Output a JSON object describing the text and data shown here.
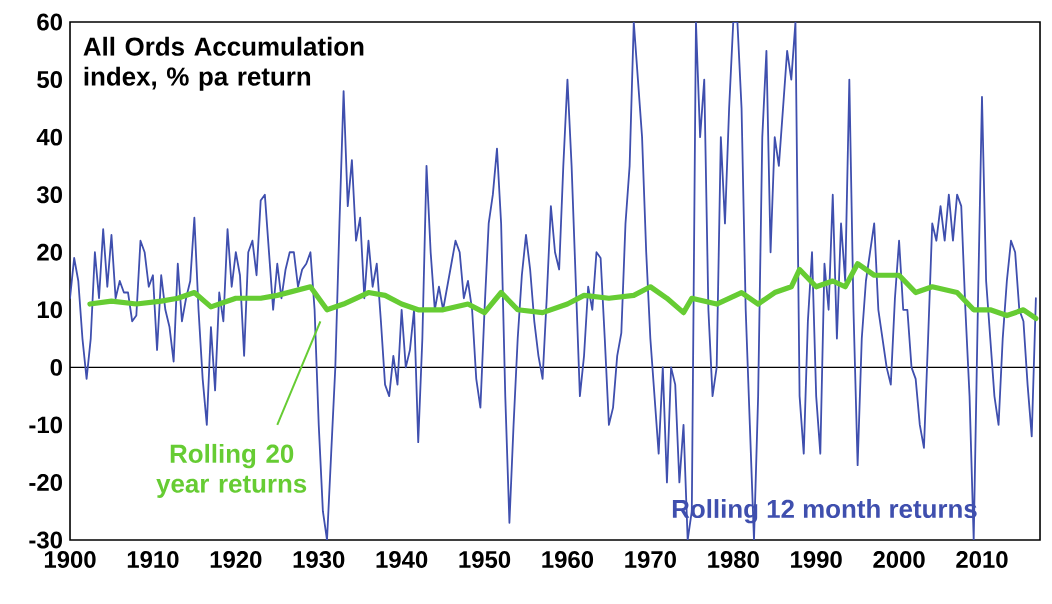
{
  "chart_data": {
    "type": "line",
    "title": "All Ords Accumulation index, % pa return",
    "xlim": [
      1900,
      2017
    ],
    "ylim": [
      -30,
      60
    ],
    "xticks": [
      1900,
      1910,
      1920,
      1930,
      1940,
      1950,
      1960,
      1970,
      1980,
      1990,
      2000,
      2010
    ],
    "yticks": [
      -30,
      -20,
      -10,
      0,
      10,
      20,
      30,
      40,
      50,
      60
    ],
    "grid": false,
    "legend": false,
    "marker": "none",
    "line_style": "solid",
    "ref_lines": [
      {
        "axis": "y",
        "value": 0,
        "color": "#000000"
      }
    ],
    "series": [
      {
        "name": "Rolling 12 month returns",
        "color": "#3f4fae",
        "x": [
          1900,
          1900.5,
          1901,
          1901.5,
          1902,
          1902.5,
          1903,
          1903.5,
          1904,
          1904.5,
          1905,
          1905.5,
          1906,
          1906.5,
          1907,
          1907.5,
          1908,
          1908.5,
          1909,
          1909.5,
          1910,
          1910.5,
          1911,
          1911.5,
          1912,
          1912.5,
          1913,
          1913.5,
          1914,
          1914.5,
          1915,
          1915.5,
          1916,
          1916.5,
          1917,
          1917.5,
          1918,
          1918.5,
          1919,
          1919.5,
          1920,
          1920.5,
          1921,
          1921.5,
          1922,
          1922.5,
          1923,
          1923.5,
          1924,
          1924.5,
          1925,
          1925.5,
          1926,
          1926.5,
          1927,
          1927.5,
          1928,
          1928.5,
          1929,
          1929.5,
          1930,
          1930.5,
          1931,
          1931.5,
          1932,
          1932.5,
          1933,
          1933.5,
          1934,
          1934.5,
          1935,
          1935.5,
          1936,
          1936.5,
          1937,
          1937.5,
          1938,
          1938.5,
          1939,
          1939.5,
          1940,
          1940.5,
          1941,
          1941.5,
          1942,
          1942.5,
          1943,
          1943.5,
          1944,
          1944.5,
          1945,
          1945.5,
          1946,
          1946.5,
          1947,
          1947.5,
          1948,
          1948.5,
          1949,
          1949.5,
          1950,
          1950.5,
          1951,
          1951.5,
          1952,
          1952.5,
          1953,
          1953.5,
          1954,
          1954.5,
          1955,
          1955.5,
          1956,
          1956.5,
          1957,
          1957.5,
          1958,
          1958.5,
          1959,
          1959.5,
          1960,
          1960.5,
          1961,
          1961.5,
          1962,
          1962.5,
          1963,
          1963.5,
          1964,
          1964.5,
          1965,
          1965.5,
          1966,
          1966.5,
          1967,
          1967.5,
          1968,
          1968.5,
          1969,
          1969.5,
          1970,
          1970.5,
          1971,
          1971.5,
          1972,
          1972.5,
          1973,
          1973.5,
          1974,
          1974.5,
          1975,
          1975.5,
          1976,
          1976.5,
          1977,
          1977.5,
          1978,
          1978.5,
          1979,
          1979.5,
          1980,
          1980.5,
          1981,
          1981.5,
          1982,
          1982.5,
          1983,
          1983.5,
          1984,
          1984.5,
          1985,
          1985.5,
          1986,
          1986.5,
          1987,
          1987.5,
          1988,
          1988.5,
          1989,
          1989.5,
          1990,
          1990.5,
          1991,
          1991.5,
          1992,
          1992.5,
          1993,
          1993.5,
          1994,
          1994.5,
          1995,
          1995.5,
          1996,
          1996.5,
          1997,
          1997.5,
          1998,
          1998.5,
          1999,
          1999.5,
          2000,
          2000.5,
          2001,
          2001.5,
          2002,
          2002.5,
          2003,
          2003.5,
          2004,
          2004.5,
          2005,
          2005.5,
          2006,
          2006.5,
          2007,
          2007.5,
          2008,
          2008.5,
          2009,
          2009.5,
          2010,
          2010.5,
          2011,
          2011.5,
          2012,
          2012.5,
          2013,
          2013.5,
          2014,
          2014.5,
          2015,
          2015.5,
          2016,
          2016.5
        ],
        "values": [
          12,
          19,
          15,
          5,
          -2,
          5,
          20,
          12,
          24,
          14,
          23,
          12,
          15,
          13,
          13,
          8,
          9,
          22,
          20,
          14,
          16,
          3,
          16,
          10,
          7,
          1,
          18,
          8,
          12,
          15,
          26,
          10,
          -2,
          -10,
          7,
          -4,
          13,
          8,
          24,
          14,
          20,
          16,
          2,
          20,
          22,
          16,
          29,
          30,
          20,
          10,
          18,
          12,
          17,
          20,
          20,
          14,
          17,
          18,
          20,
          10,
          -10,
          -25,
          -30,
          -15,
          0,
          25,
          48,
          28,
          36,
          22,
          26,
          12,
          22,
          14,
          18,
          8,
          -3,
          -5,
          2,
          -3,
          10,
          0,
          3,
          10,
          -13,
          5,
          35,
          20,
          10,
          14,
          10,
          14,
          18,
          22,
          20,
          12,
          15,
          10,
          -2,
          -7,
          10,
          25,
          30,
          38,
          25,
          -5,
          -27,
          -10,
          5,
          16,
          23,
          17,
          8,
          2,
          -2,
          12,
          28,
          20,
          17,
          35,
          50,
          35,
          15,
          -5,
          2,
          14,
          10,
          20,
          19,
          5,
          -10,
          -7,
          2,
          6,
          25,
          35,
          60,
          50,
          40,
          20,
          5,
          -5,
          -15,
          0,
          -20,
          0,
          -3,
          -20,
          -10,
          -30,
          -25,
          60,
          40,
          50,
          10,
          -5,
          0,
          40,
          25,
          45,
          60,
          60,
          45,
          10,
          -10,
          -30,
          -5,
          40,
          55,
          20,
          40,
          35,
          45,
          55,
          50,
          60,
          -5,
          -15,
          8,
          20,
          -5,
          -15,
          18,
          10,
          30,
          5,
          25,
          15,
          50,
          10,
          -17,
          5,
          15,
          20,
          25,
          10,
          5,
          0,
          -3,
          12,
          22,
          10,
          10,
          0,
          -2,
          -10,
          -14,
          5,
          25,
          22,
          28,
          22,
          30,
          22,
          30,
          28,
          10,
          -5,
          -30,
          10,
          47,
          15,
          5,
          -5,
          -10,
          5,
          15,
          22,
          20,
          10,
          8,
          -3,
          -12,
          12
        ]
      },
      {
        "name": "Rolling 20 year returns",
        "color": "#66cc33",
        "x": [
          1902.4,
          1905,
          1908,
          1911,
          1913,
          1915,
          1917,
          1920,
          1923,
          1925,
          1929,
          1931,
          1933,
          1936,
          1938,
          1940,
          1942,
          1945,
          1948,
          1950,
          1952,
          1954,
          1957,
          1960,
          1962,
          1965,
          1968,
          1970,
          1972,
          1974,
          1975,
          1978,
          1981,
          1983,
          1985,
          1987,
          1988,
          1990,
          1992,
          1993.5,
          1995,
          1997,
          2000,
          2002,
          2004,
          2007,
          2009,
          2011,
          2013,
          2015,
          2016.5
        ],
        "values": [
          11,
          11.5,
          11,
          11.5,
          12,
          13,
          10.5,
          12,
          12,
          12.5,
          14,
          10,
          11,
          13,
          12.5,
          11,
          10,
          10,
          11,
          9.5,
          13,
          10,
          9.5,
          11,
          12.5,
          12,
          12.5,
          14,
          12,
          9.5,
          12,
          11,
          13,
          11,
          13,
          14,
          17,
          14,
          15,
          14,
          18,
          16,
          16,
          13,
          14,
          13,
          10,
          10,
          9,
          10,
          8.5
        ]
      }
    ]
  }
}
